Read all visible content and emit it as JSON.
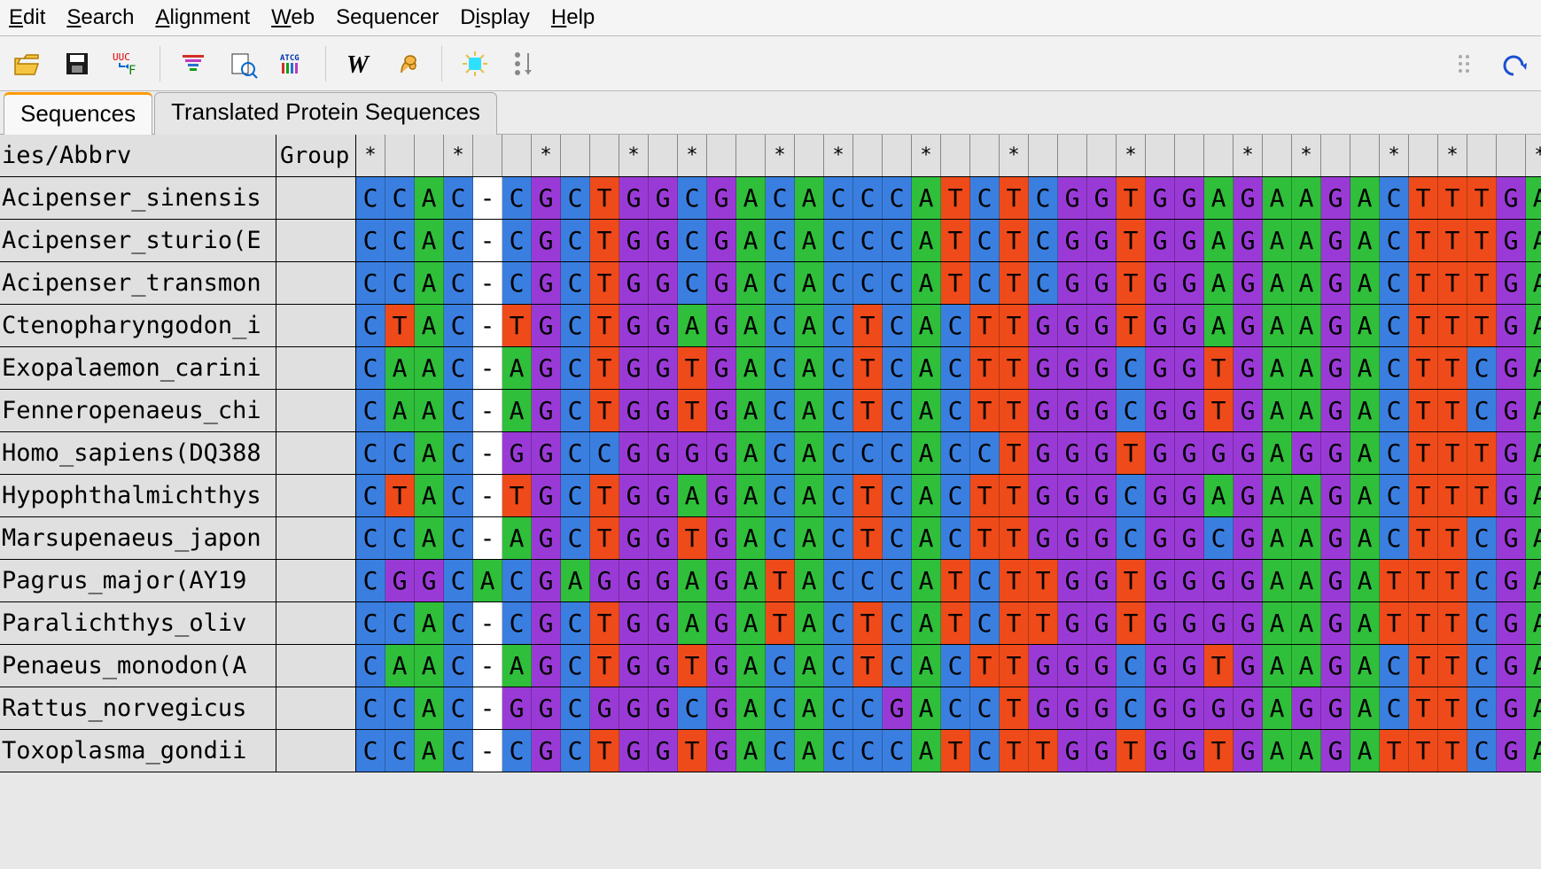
{
  "menu": {
    "items": [
      {
        "label": "Edit",
        "hotkey_idx": 0
      },
      {
        "label": "Search",
        "hotkey_idx": 0
      },
      {
        "label": "Alignment",
        "hotkey_idx": 0
      },
      {
        "label": "Web",
        "hotkey_idx": 0
      },
      {
        "label": "Sequencer",
        "hotkey_idx": -1
      },
      {
        "label": "Display",
        "hotkey_idx": 1
      },
      {
        "label": "Help",
        "hotkey_idx": 0
      }
    ]
  },
  "toolbar": {
    "icons": [
      "open-icon",
      "save-icon",
      "translate-icon",
      "SEP",
      "align-clustal-icon",
      "align-query-icon",
      "align-muscle-icon",
      "SEP",
      "w-icon",
      "muscle-arm-icon",
      "SEP",
      "highlight-icon",
      "sort-icon"
    ],
    "undo_icon": "undo-icon",
    "drag_handle_icon": "drag-handle-icon"
  },
  "tabs": {
    "items": [
      "Sequences",
      "Translated Protein Sequences"
    ],
    "active": 0
  },
  "columns": {
    "name_header": "ies/Abbrv",
    "group_header": "Group"
  },
  "colors": {
    "A": "#2fbf3a",
    "C": "#3a7fe0",
    "G": "#9a3ad6",
    "T": "#ef4a1a",
    "-": "#ffffff",
    "row_header_bg": "#e0e0e0",
    "background": "#e8e8e8"
  },
  "conservation_header": "*  *  *  * *  * *  *  *   *   * *  * *  * *  * *  * *  * * * *",
  "sequences": [
    {
      "name": "Acipenser_sinensis",
      "group": "",
      "seq": "CCAC-CGCTGGCGACACCCATCTCGGTGGAGAAGACTTTGACAAC"
    },
    {
      "name": "Acipenser_sturio(E",
      "group": "",
      "seq": "CCAC-CGCTGGCGACACCCATCTCGGTGGAGAAGACTTTGACAAC"
    },
    {
      "name": "Acipenser_transmon",
      "group": "",
      "seq": "CCAC-CGCTGGCGACACCCATCTCGGTGGAGAAGACTTTGACAAC"
    },
    {
      "name": "Ctenopharyngodon_i",
      "group": "",
      "seq": "CTAC-TGCTGGAGACACTCACTTGGGTGGAGAAGACTTTGACAAC"
    },
    {
      "name": "Exopalaemon_carini",
      "group": "",
      "seq": "CAAC-AGCTGGTGACACTCACTTGGGCGGTGAAGACTTCGACAAC"
    },
    {
      "name": "Fenneropenaeus_chi",
      "group": "",
      "seq": "CAAC-AGCTGGTGACACTCACTTGGGCGGTGAAGACTTCGACAAC"
    },
    {
      "name": "Homo_sapiens(DQ388",
      "group": "",
      "seq": "CCAC-GGCCGGGGACACCCACCTGGGTGGGGAGGACTTTGACAAC"
    },
    {
      "name": "Hypophthalmichthys",
      "group": "",
      "seq": "CTAC-TGCTGGAGACACTCACTTGGGCGGAGAAGACTTTGACAAC"
    },
    {
      "name": "Marsupenaeus_japon",
      "group": "",
      "seq": "CCAC-AGCTGGTGACACTCACTTGGGCGGCGAAGACTTCGACAAC"
    },
    {
      "name": " Pagrus_major(AY19",
      "group": "",
      "seq": "CGGCACGAGGGAGATACCCATCTTGGTGGGGAAGATTTCGACAAC"
    },
    {
      "name": " Paralichthys_oliv",
      "group": "",
      "seq": "CCAC-CGCTGGAGATACTCATCTTGGTGGGGAAGATTTCGACAAC"
    },
    {
      "name": " Penaeus_monodon(A",
      "group": "",
      "seq": "CAAC-AGCTGGTGACACTCACTTGGGCGGTGAAGACTTCGACAAC"
    },
    {
      "name": " Rattus_norvegicus",
      "group": "",
      "seq": "CCAC-GGCGGGCGACACCGACCTGGGCGGGGAGGACTTCGACAAC"
    },
    {
      "name": " Toxoplasma_gondii",
      "group": "",
      "seq": "CCAC-CGCTGGTGACACCCATCTTGGTGGTGAAGATTTCGACAAC"
    }
  ]
}
